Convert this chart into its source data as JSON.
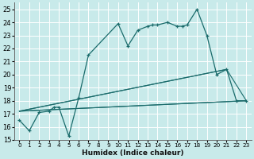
{
  "xlabel": "Humidex (Indice chaleur)",
  "background_color": "#c8eaea",
  "grid_color": "#ffffff",
  "line_color": "#1a6b6b",
  "xlim": [
    -0.5,
    23.5
  ],
  "ylim": [
    15,
    25.5
  ],
  "xticks": [
    0,
    1,
    2,
    3,
    4,
    5,
    6,
    7,
    8,
    9,
    10,
    11,
    12,
    13,
    14,
    15,
    16,
    17,
    18,
    19,
    20,
    21,
    22,
    23
  ],
  "yticks": [
    15,
    16,
    17,
    18,
    19,
    20,
    21,
    22,
    23,
    24,
    25
  ],
  "main_x": [
    0,
    1,
    2,
    3,
    3.5,
    4,
    5,
    6,
    7,
    10,
    11,
    12,
    13,
    13.5,
    14,
    15,
    16,
    16.5,
    17,
    18,
    19,
    20,
    21,
    22,
    23
  ],
  "main_y": [
    16.5,
    15.7,
    17.1,
    17.2,
    17.5,
    17.5,
    15.3,
    18.2,
    21.5,
    23.9,
    22.2,
    23.4,
    23.7,
    23.8,
    23.8,
    24.0,
    23.7,
    23.7,
    23.8,
    25.0,
    23.0,
    20.0,
    20.4,
    18.0,
    18.0
  ],
  "flat_line_x": [
    0,
    23
  ],
  "flat_line_y": [
    17.2,
    18.0
  ],
  "tri_lines": [
    {
      "x": [
        0,
        21
      ],
      "y": [
        17.2,
        20.4
      ]
    },
    {
      "x": [
        0,
        21,
        23,
        0
      ],
      "y": [
        17.2,
        20.4,
        18.0,
        17.2
      ]
    },
    {
      "x": [
        0,
        23
      ],
      "y": [
        17.2,
        18.0
      ]
    }
  ]
}
